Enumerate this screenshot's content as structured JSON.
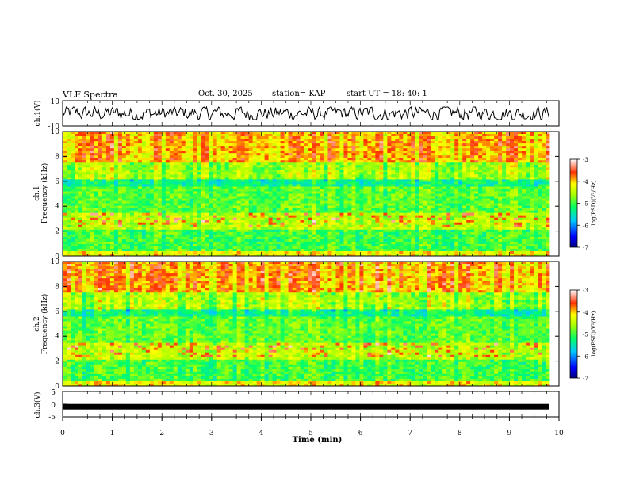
{
  "header": {
    "title": "VLF Spectra",
    "date": "Oct. 30, 2025",
    "station": "station= KAP",
    "start": "start  UT  =   18: 40: 1"
  },
  "colors": {
    "waveform": "#000000",
    "spectrogram_low": "#00ff66",
    "spectrogram_high": "#ff2200",
    "ch3_trace": "#000000"
  },
  "chart_data": [
    {
      "type": "line",
      "name": "ch1-waveform",
      "ylabel": "ch.1(V)",
      "ylim": [
        -10,
        10
      ],
      "yticks": [
        {
          "value": 10,
          "label": "10"
        },
        {
          "value": -10,
          "label": "-10"
        }
      ],
      "xlim": [
        0,
        10
      ],
      "series_range": [
        -5,
        5
      ]
    },
    {
      "type": "heatmap",
      "name": "ch1-spectrogram",
      "ylabel": "ch.1\nFrequency (kHz)",
      "ylim": [
        0,
        10
      ],
      "yticks": [
        0,
        2,
        4,
        6,
        8,
        10
      ],
      "xlim": [
        0,
        9.8
      ],
      "colorbar": {
        "label": "log(PSD)(V²/Hz)",
        "range": [
          -7,
          -3
        ],
        "ticks": [
          -7,
          -6,
          -5,
          -4,
          -3
        ]
      }
    },
    {
      "type": "heatmap",
      "name": "ch2-spectrogram",
      "ylabel": "ch.2\nFrequency (kHz)",
      "ylim": [
        0,
        10
      ],
      "yticks": [
        0,
        2,
        4,
        6,
        8,
        10
      ],
      "xlim": [
        0,
        9.8
      ],
      "colorbar": {
        "label": "log(PSD)(V²/Hz)",
        "range": [
          -7,
          -3
        ],
        "ticks": [
          -7,
          -6,
          -5,
          -4,
          -3
        ]
      }
    },
    {
      "type": "line",
      "name": "ch3-trace",
      "ylabel": "ch.3(V)",
      "ylim": [
        -5,
        5
      ],
      "yticks": [
        {
          "value": 5,
          "label": "5"
        },
        {
          "value": 0,
          "label": "0"
        },
        {
          "value": -5,
          "label": "-5"
        }
      ],
      "level": -1
    }
  ],
  "xaxis": {
    "label": "Time  (min)",
    "ticks": [
      0,
      1,
      2,
      3,
      4,
      5,
      6,
      7,
      8,
      9,
      10
    ]
  }
}
